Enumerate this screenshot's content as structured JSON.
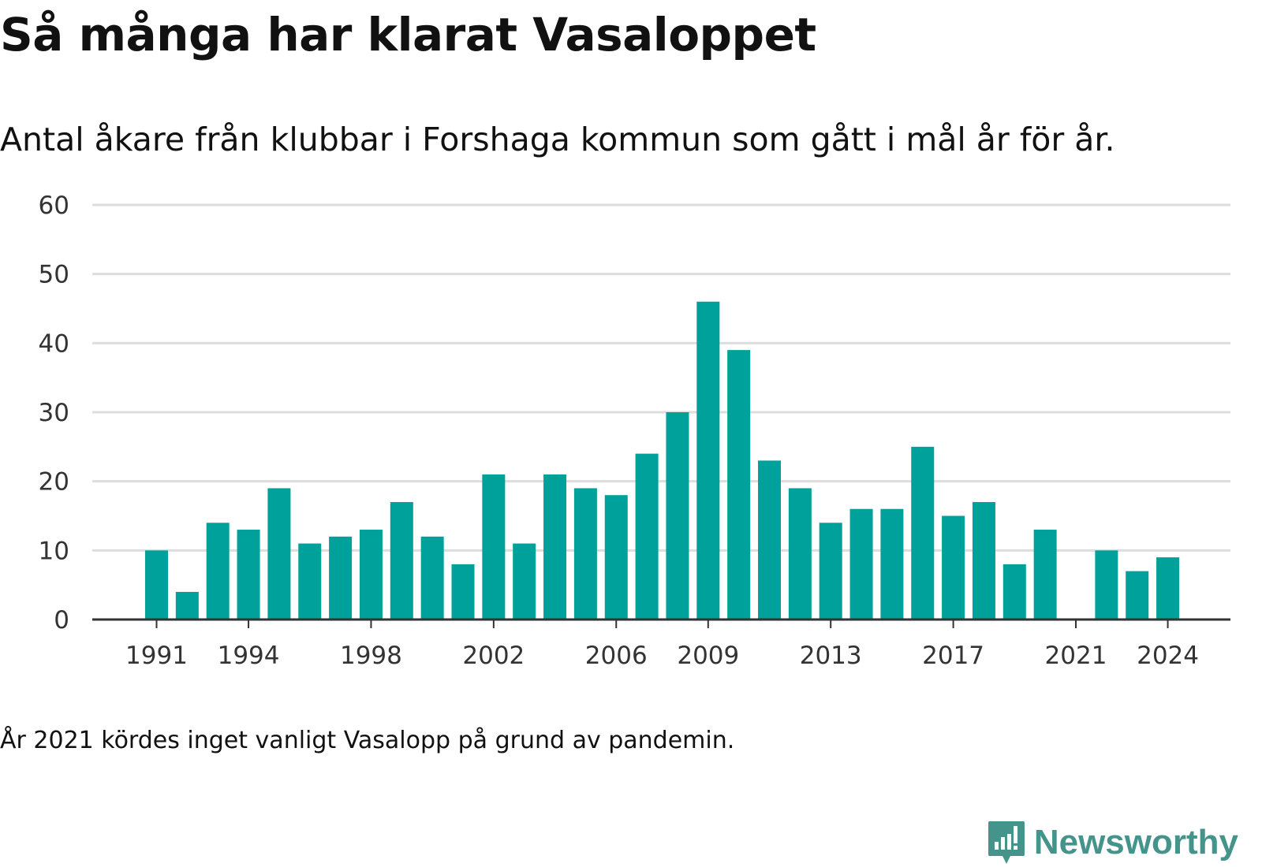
{
  "title": "Så många har klarat Vasaloppet",
  "subtitle": "Antal åkare från klubbar i Forshaga kommun som gått i mål år för år.",
  "note": "År 2021 kördes inget vanligt Vasalopp på grund av pandemin.",
  "brand": "Newsworthy",
  "colors": {
    "bar": "#00a19a",
    "grid": "#dddddd",
    "axis": "#333333",
    "brand": "#45948c"
  },
  "chart_data": {
    "type": "bar",
    "categories": [
      1991,
      1992,
      1993,
      1994,
      1995,
      1996,
      1997,
      1998,
      1999,
      2000,
      2001,
      2002,
      2003,
      2004,
      2005,
      2006,
      2007,
      2008,
      2009,
      2010,
      2011,
      2012,
      2013,
      2014,
      2015,
      2016,
      2017,
      2018,
      2019,
      2020,
      2021,
      2022,
      2023,
      2024
    ],
    "values": [
      10,
      4,
      14,
      13,
      19,
      11,
      12,
      13,
      17,
      12,
      8,
      21,
      11,
      21,
      19,
      18,
      24,
      30,
      46,
      39,
      23,
      19,
      14,
      16,
      16,
      25,
      15,
      17,
      8,
      13,
      null,
      10,
      7,
      9
    ],
    "x_tick_labels": [
      "1991",
      "1994",
      "1998",
      "2002",
      "2006",
      "2009",
      "2013",
      "2017",
      "2021",
      "2024"
    ],
    "y_ticks": [
      0,
      10,
      20,
      30,
      40,
      50,
      60
    ],
    "ylim": [
      0,
      60
    ],
    "xlabel": "",
    "ylabel": "",
    "grid": true
  }
}
